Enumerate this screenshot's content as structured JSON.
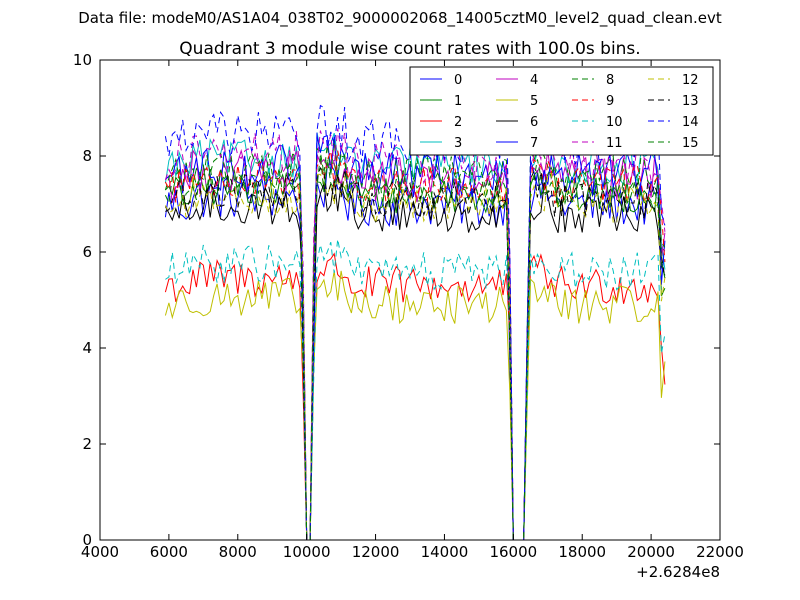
{
  "figure": {
    "suptitle": "Data file: modeM0/AS1A04_038T02_9000002068_14005cztM0_level2_quad_clean.evt"
  },
  "chart_data": {
    "type": "line",
    "title": "Quadrant 3 module wise count rates with 100.0s bins.",
    "xlabel": "",
    "ylabel": "",
    "x_offset_label": "+2.6284e8",
    "xlim": [
      4000,
      22000
    ],
    "ylim": [
      0,
      10
    ],
    "xticks": [
      4000,
      6000,
      8000,
      10000,
      12000,
      14000,
      16000,
      18000,
      20000,
      22000
    ],
    "yticks": [
      0,
      2,
      4,
      6,
      8,
      10
    ],
    "xtick_labels": [
      "4000",
      "6000",
      "8000",
      "10000",
      "12000",
      "14000",
      "16000",
      "18000",
      "20000",
      "22000"
    ],
    "ytick_labels": [
      "0",
      "2",
      "4",
      "6",
      "8",
      "10"
    ],
    "x_start": 5900,
    "x_end": 20400,
    "bin_size": 100,
    "data_gaps": [
      {
        "start": 9850,
        "bottom_start": 9950,
        "bottom_end": 10150,
        "end": 10250
      },
      {
        "start": 15850,
        "bottom_start": 15950,
        "bottom_end": 16350,
        "end": 16450
      }
    ],
    "legend_position": "upper-right",
    "legend_columns": 4,
    "grid": false,
    "series": [
      {
        "name": "0",
        "color": "#0000ff",
        "dash": "solid",
        "base": 7.0,
        "noise": 0.3
      },
      {
        "name": "1",
        "color": "#008000",
        "dash": "solid",
        "base": 7.2,
        "noise": 0.25
      },
      {
        "name": "2",
        "color": "#ff0000",
        "dash": "solid",
        "base": 5.3,
        "noise": 0.25
      },
      {
        "name": "3",
        "color": "#00bfbf",
        "dash": "solid",
        "base": 7.8,
        "noise": 0.25
      },
      {
        "name": "4",
        "color": "#bf00bf",
        "dash": "solid",
        "base": 7.5,
        "noise": 0.3
      },
      {
        "name": "5",
        "color": "#bfbf00",
        "dash": "solid",
        "base": 4.9,
        "noise": 0.25
      },
      {
        "name": "6",
        "color": "#000000",
        "dash": "solid",
        "base": 6.8,
        "noise": 0.25
      },
      {
        "name": "7",
        "color": "#0000ff",
        "dash": "solid",
        "base": 7.6,
        "noise": 0.3
      },
      {
        "name": "8",
        "color": "#008000",
        "dash": "dashed",
        "base": 7.6,
        "noise": 0.25
      },
      {
        "name": "9",
        "color": "#ff0000",
        "dash": "dashed",
        "base": 7.4,
        "noise": 0.25
      },
      {
        "name": "10",
        "color": "#00bfbf",
        "dash": "dashed",
        "base": 5.6,
        "noise": 0.25
      },
      {
        "name": "11",
        "color": "#bf00bf",
        "dash": "dashed",
        "base": 7.9,
        "noise": 0.3
      },
      {
        "name": "12",
        "color": "#bfbf00",
        "dash": "dashed",
        "base": 7.0,
        "noise": 0.25
      },
      {
        "name": "13",
        "color": "#000000",
        "dash": "dashed",
        "base": 7.1,
        "noise": 0.25
      },
      {
        "name": "14",
        "color": "#0000ff",
        "dash": "dashed",
        "base": 8.3,
        "noise": 0.3
      },
      {
        "name": "15",
        "color": "#008000",
        "dash": "dashed",
        "base": 7.3,
        "noise": 0.25
      }
    ]
  }
}
